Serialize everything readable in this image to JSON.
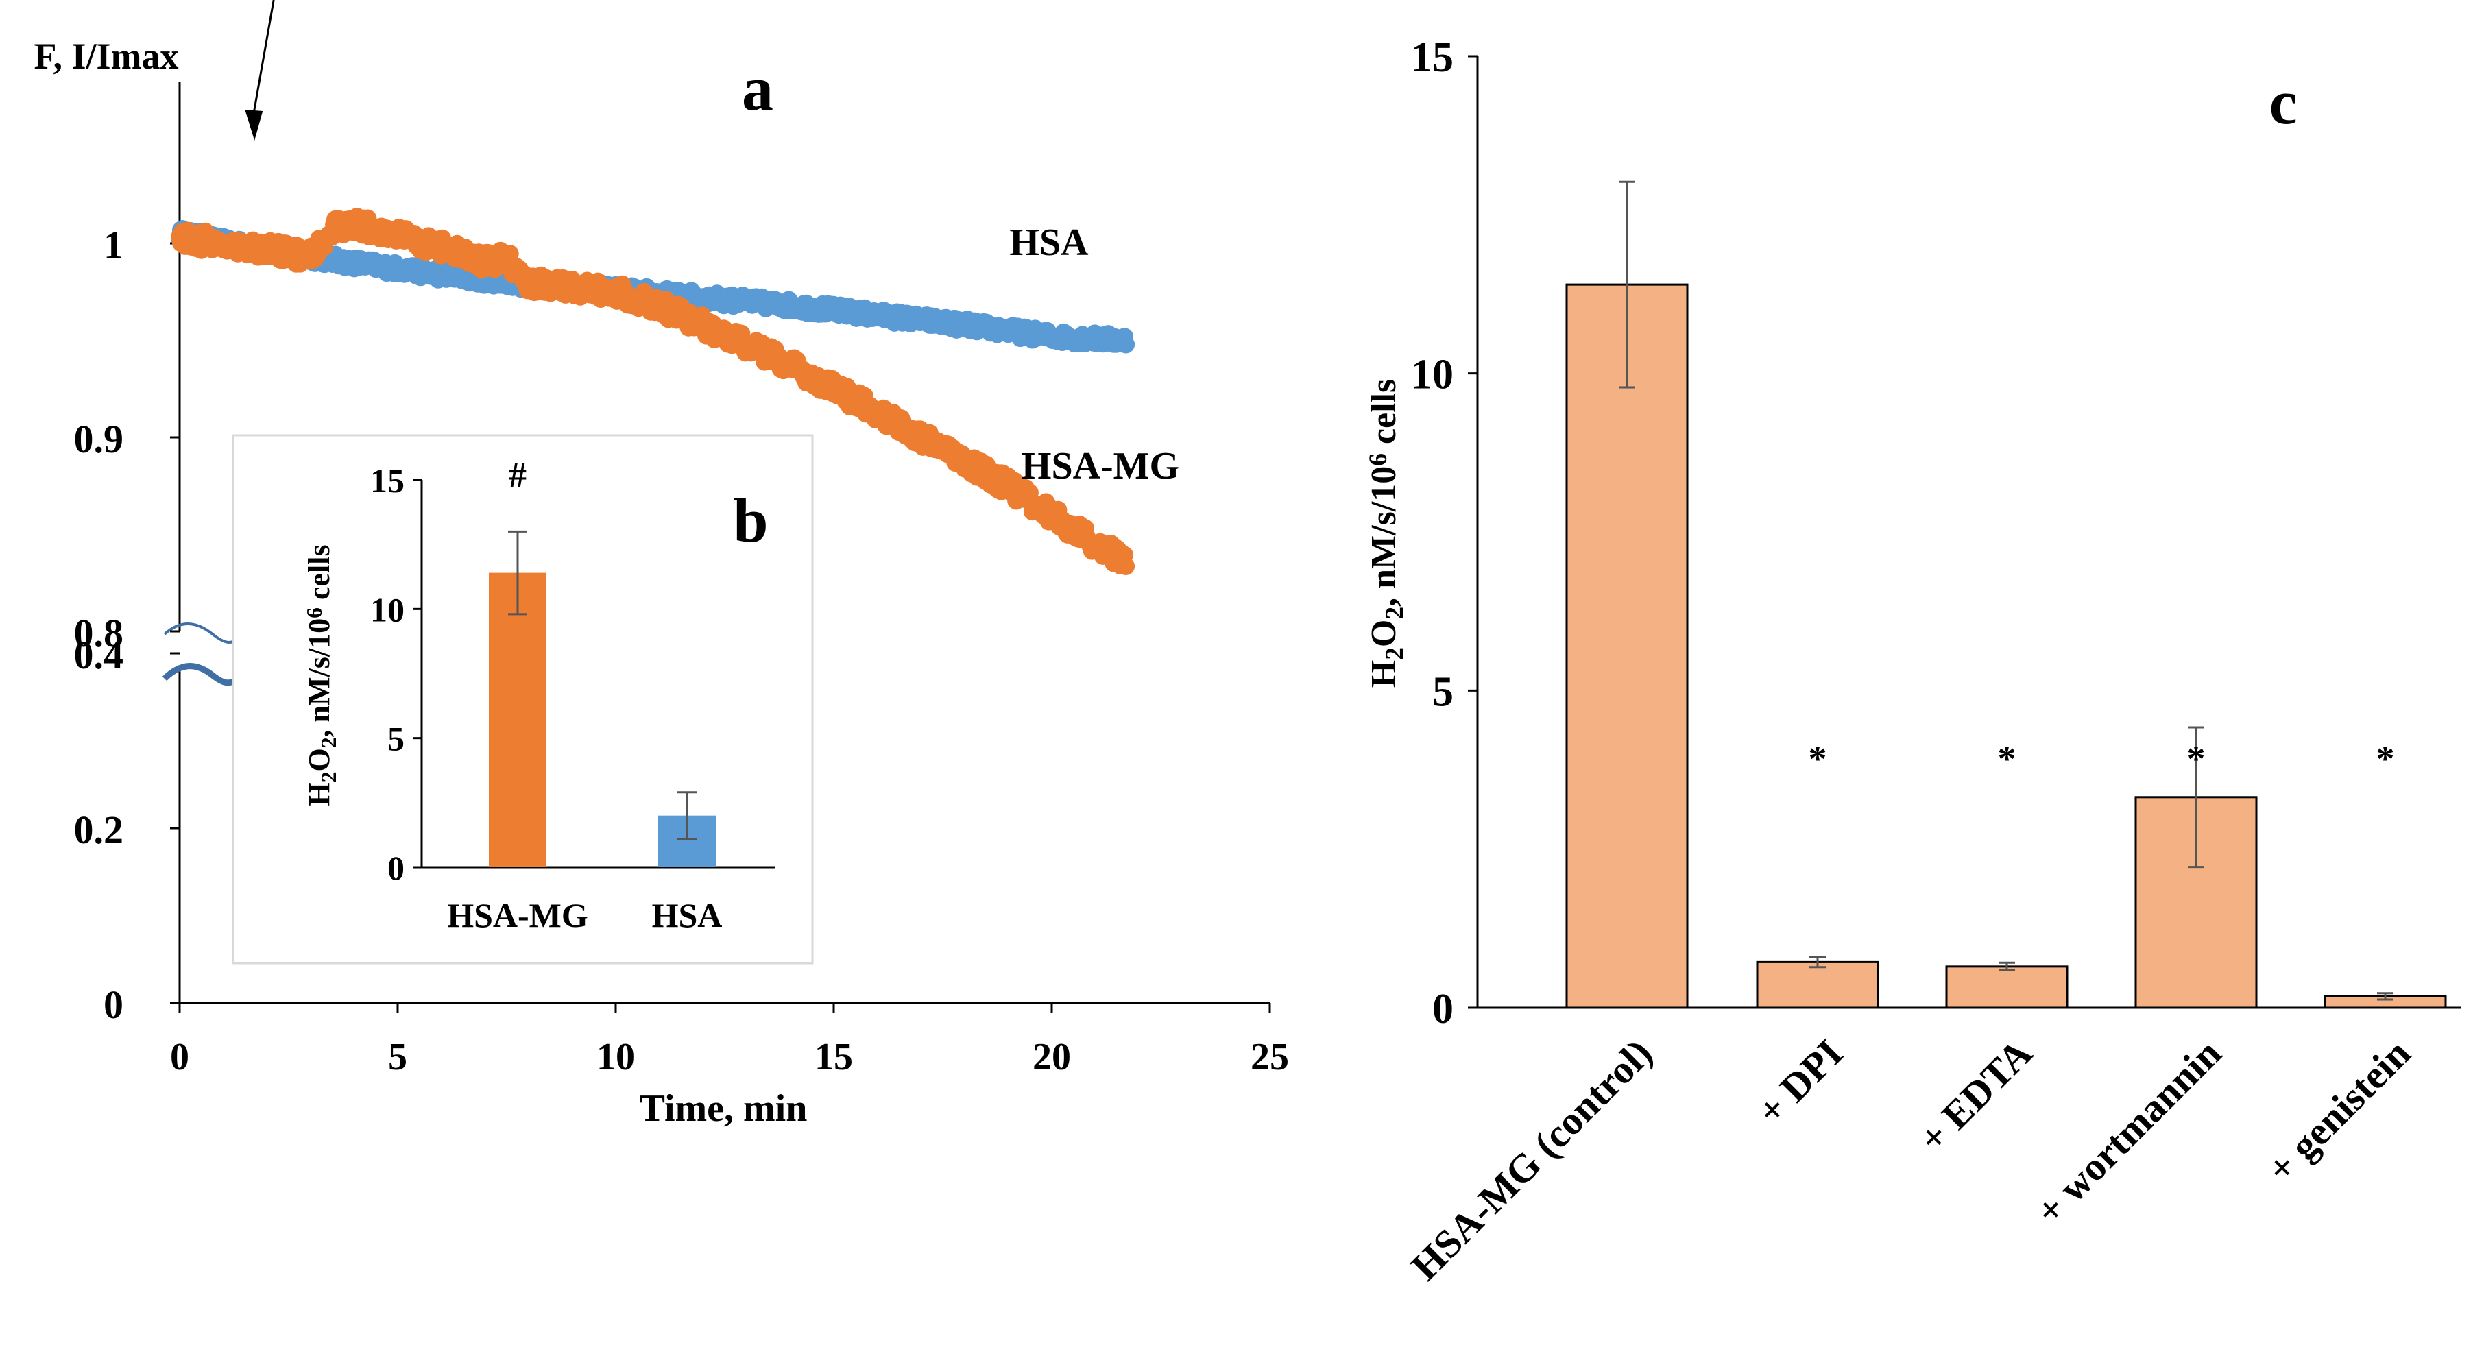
{
  "chart_data": [
    {
      "panel": "a",
      "type": "scatter",
      "title": "a",
      "ylabel": "F, I/Imax",
      "xlabel": "Time,  min",
      "xlim": [
        0,
        25
      ],
      "x_ticks": [
        "0",
        "5",
        "10",
        "15",
        "20",
        "25"
      ],
      "y_ticks_upper": [
        "0.8",
        "0.9",
        "1"
      ],
      "y_ticks_lower": [
        "0",
        "0.2",
        "0.4"
      ],
      "axis_break": "between 0.4 and 0.8",
      "arrow_time": 2,
      "series": [
        {
          "name": "HSA",
          "color": "#5B9BD5",
          "x": [
            0,
            2,
            4,
            6,
            8,
            10,
            12,
            14,
            16,
            18,
            20,
            21.7
          ],
          "y": [
            1.005,
            0.996,
            0.99,
            0.984,
            0.979,
            0.976,
            0.972,
            0.968,
            0.963,
            0.958,
            0.952,
            0.95
          ]
        },
        {
          "name": "HSA-MG",
          "color": "#ED7D31",
          "x": [
            0,
            1,
            2,
            3,
            3.5,
            4,
            5,
            6,
            7,
            7.5,
            8,
            9,
            10,
            11,
            12,
            13,
            14,
            15,
            16,
            17,
            18,
            19,
            20,
            21,
            21.7
          ],
          "y": [
            1.003,
            1.0,
            0.997,
            0.993,
            1.008,
            1.01,
            1.004,
            0.998,
            0.99,
            0.992,
            0.98,
            0.978,
            0.975,
            0.968,
            0.958,
            0.948,
            0.937,
            0.925,
            0.913,
            0.9,
            0.888,
            0.875,
            0.86,
            0.845,
            0.836
          ]
        }
      ]
    },
    {
      "panel": "b",
      "type": "bar",
      "title": "b",
      "categories": [
        "HSA-MG",
        "HSA"
      ],
      "values": [
        11.4,
        2.0
      ],
      "errors": [
        1.6,
        0.9
      ],
      "colors": [
        "#ED7D31",
        "#5B9BD5"
      ],
      "ylim": [
        0,
        15
      ],
      "y_ticks": [
        "0",
        "5",
        "10",
        "15"
      ],
      "ylabel_parts": [
        "H",
        "2",
        "O",
        "2",
        ", nM/s/10",
        "6",
        " cells"
      ],
      "significance": [
        "#",
        ""
      ]
    },
    {
      "panel": "c",
      "type": "bar",
      "title": "c",
      "categories": [
        "HSA-MG (control)",
        "+ DPI",
        "+ EDTA",
        "+ wortmannin",
        "+ genistein"
      ],
      "values": [
        11.4,
        0.72,
        0.65,
        3.32,
        0.18
      ],
      "errors": [
        1.62,
        0.08,
        0.06,
        1.1,
        0.05
      ],
      "color": "#F4B183",
      "ylim": [
        0,
        15
      ],
      "y_ticks": [
        "0",
        "5",
        "10",
        "15"
      ],
      "ylabel_parts": [
        "H",
        "2",
        "O",
        "2",
        ", nM/s/10",
        "6",
        " cells"
      ],
      "significance": [
        "",
        "*",
        "*",
        "*",
        "*"
      ]
    }
  ]
}
